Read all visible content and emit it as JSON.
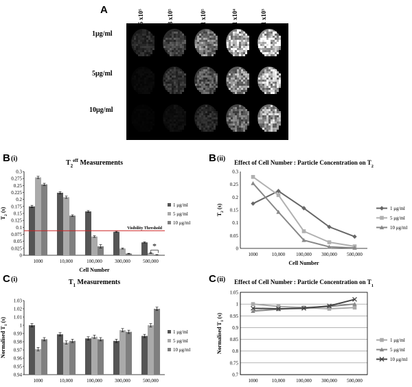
{
  "panelA": {
    "letter": "A",
    "col_labels": [
      "5 x10⁵",
      "3 x10⁵",
      "1 x10⁵",
      "1 x10⁴",
      "1 x10³"
    ],
    "row_labels": [
      "1μg/ml",
      "5μg/ml",
      "10μg/ml"
    ],
    "brightness": [
      [
        0.18,
        0.3,
        0.55,
        0.85,
        0.95
      ],
      [
        0.04,
        0.22,
        0.38,
        0.62,
        0.82
      ],
      [
        0.02,
        0.06,
        0.18,
        0.45,
        0.72
      ]
    ]
  },
  "chart_data": [
    {
      "id": "B-i",
      "panel": "B",
      "sub": "(i)",
      "type": "bar",
      "title_main": "T",
      "title_sub": "2",
      "title_sup": "eff",
      "title_rest": " Measurements",
      "xlabel": "Cell Number",
      "ylabel_main": "T",
      "ylabel_sub": "2",
      "ylabel_rest": " (s)",
      "categories": [
        "1000",
        "10,000",
        "100,000",
        "300,000",
        "500,000"
      ],
      "ylim": [
        0,
        0.3
      ],
      "yticks": [
        "0",
        "0.025",
        "0.05",
        "0.075",
        "0.1",
        "0.125",
        "0.15",
        "0.175",
        "0.2",
        "0.225",
        "0.25",
        "0.275",
        "0.3"
      ],
      "series": [
        {
          "name": "1 μg/ml",
          "color": "#555555",
          "values": [
            0.175,
            0.224,
            0.157,
            0.084,
            0.046
          ],
          "err": [
            0.004,
            0.004,
            0.003,
            0.002,
            0.002
          ]
        },
        {
          "name": "5 μg/ml",
          "color": "#aaaaaa",
          "values": [
            0.279,
            0.208,
            0.067,
            0.024,
            0.008
          ],
          "err": [
            0.004,
            0.004,
            0.003,
            0.002,
            0.001
          ]
        },
        {
          "name": "10 μg/ml",
          "color": "#7f7f7f",
          "values": [
            0.254,
            0.142,
            0.032,
            0.006,
            0.002
          ],
          "err": [
            0.004,
            0.003,
            0.006,
            0.001,
            0.0005
          ]
        }
      ],
      "threshold": {
        "value": 0.088,
        "label": "Visibility Threshold",
        "color": "#cc2222"
      },
      "annotation": "*"
    },
    {
      "id": "B-ii",
      "panel": "B",
      "sub": "(ii)",
      "type": "line",
      "title_main": "Effect of Cell Number : Particle Concentration on T",
      "title_sub": "2",
      "xlabel": "Cell Number",
      "ylabel_main": "T",
      "ylabel_sub": "2",
      "ylabel_rest": " (s)",
      "categories": [
        "1000",
        "10,000",
        "100,000",
        "300,000",
        "500,000"
      ],
      "ylim": [
        0,
        0.3
      ],
      "yticks": [
        "0",
        "0.05",
        "0.1",
        "0.15",
        "0.2",
        "0.25",
        "0.3"
      ],
      "series": [
        {
          "name": "1 μg/ml",
          "color": "#666666",
          "marker": "diamond",
          "values": [
            0.175,
            0.224,
            0.157,
            0.084,
            0.046
          ]
        },
        {
          "name": "5 μg/ml",
          "color": "#b0b0b0",
          "marker": "square",
          "values": [
            0.279,
            0.208,
            0.067,
            0.024,
            0.008
          ]
        },
        {
          "name": "10 μg/ml",
          "color": "#888888",
          "marker": "triangle",
          "values": [
            0.254,
            0.142,
            0.032,
            0.006,
            0.002
          ]
        }
      ]
    },
    {
      "id": "C-i",
      "panel": "C",
      "sub": "(i)",
      "type": "bar",
      "title_main": "T",
      "title_sub": "1",
      "title_sup": "",
      "title_rest": " Measurements",
      "xlabel": "Cell Number",
      "ylabel_main": "Normalised T",
      "ylabel_sub": "1",
      "ylabel_rest": " (s)",
      "categories": [
        "1000",
        "10,000",
        "100,000",
        "300,000",
        "500,000"
      ],
      "ylim": [
        0.94,
        1.03
      ],
      "yticks": [
        "0.94",
        "0.95",
        "0.96",
        "0.97",
        "0.98",
        "0.99",
        "1",
        "1.01",
        "1.02",
        "1.03"
      ],
      "series": [
        {
          "name": "1 μg/ml",
          "color": "#555555",
          "values": [
            1.0,
            0.989,
            0.984,
            0.981,
            0.987
          ],
          "err": [
            0.002,
            0.002,
            0.002,
            0.002,
            0.002
          ]
        },
        {
          "name": "5 μg/ml",
          "color": "#aaaaaa",
          "values": [
            0.971,
            0.979,
            0.986,
            0.994,
            1.0
          ],
          "err": [
            0.002,
            0.002,
            0.002,
            0.002,
            0.002
          ]
        },
        {
          "name": "10 μg/ml",
          "color": "#7f7f7f",
          "values": [
            0.983,
            0.981,
            0.983,
            0.992,
            1.02
          ],
          "err": [
            0.002,
            0.002,
            0.002,
            0.002,
            0.002
          ]
        }
      ]
    },
    {
      "id": "C-ii",
      "panel": "C",
      "sub": "(ii)",
      "type": "line",
      "title_main": "Effect of Cell Number : Particle Concentration on T",
      "title_sub": "1",
      "xlabel": "Cell Number",
      "ylabel_main": "Normalised T",
      "ylabel_sub": "1",
      "ylabel_rest": " (s)",
      "categories": [
        "1000",
        "10,000",
        "100,000",
        "300,000",
        "500,000"
      ],
      "ylim": [
        0.7,
        1.05
      ],
      "yticks": [
        "0.7",
        "0.75",
        "0.8",
        "0.85",
        "0.9",
        "0.95",
        "1",
        "1.05"
      ],
      "series": [
        {
          "name": "1 μg/ml",
          "color": "#aaaaaa",
          "marker": "square",
          "values": [
            1.0,
            0.99,
            0.985,
            0.98,
            0.985
          ]
        },
        {
          "name": "5 μg/ml",
          "color": "#888888",
          "marker": "triangle",
          "values": [
            0.97,
            0.978,
            0.985,
            0.99,
            1.0
          ]
        },
        {
          "name": "10 μg/ml",
          "color": "#444444",
          "marker": "x",
          "values": [
            0.982,
            0.98,
            0.982,
            0.992,
            1.02
          ]
        }
      ]
    }
  ]
}
